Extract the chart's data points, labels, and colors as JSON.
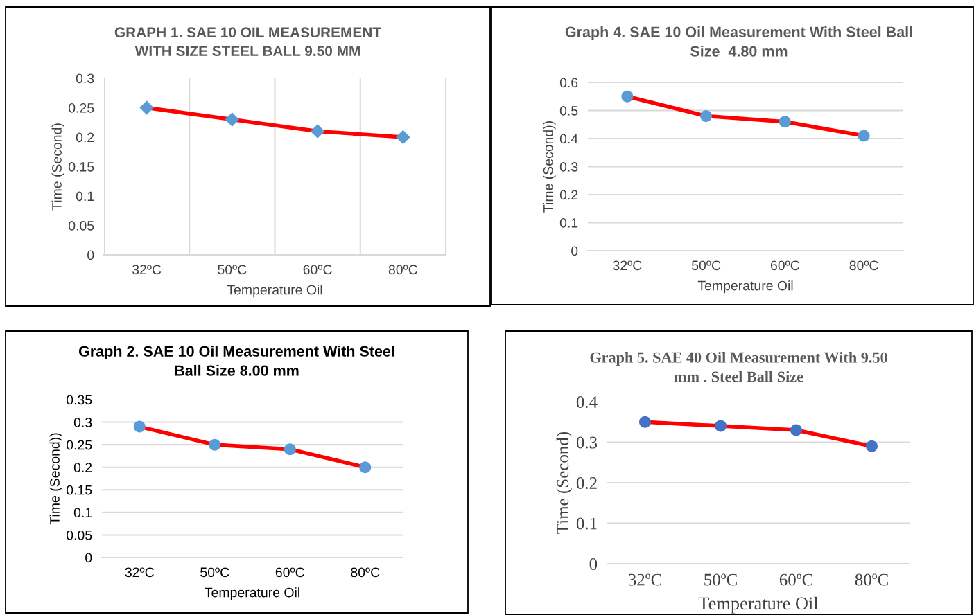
{
  "chart_data": [
    {
      "type": "line",
      "title": "GRAPH 1. SAE 10 OIL MEASUREMENT\nWITH SIZE STEEL BALL 9.50 MM",
      "xlabel": "Temperature Oil",
      "ylabel": "Time (Second)",
      "categories": [
        "32ºC",
        "50ºC",
        "60ºC",
        "80ºC"
      ],
      "series": [
        {
          "color": "#ff0000",
          "colors": [
            "#5b9bd5",
            "#5b9bd5",
            "#5b9bd5",
            "#5b9bd5"
          ],
          "values": [
            0.25,
            0.23,
            0.21,
            0.2
          ]
        }
      ],
      "ylim": [
        0,
        0.3
      ],
      "yticks": [
        0,
        0.05,
        0.1,
        0.15,
        0.2,
        0.25,
        0.3
      ],
      "grid": "x",
      "marker": "diamond",
      "line_style": "solid"
    },
    {
      "type": "line",
      "title": "Graph 4. SAE 10 Oil Measurement With Steel Ball\nSize  4.80 mm",
      "xlabel": "Temperature Oil",
      "ylabel": "Time (Second))",
      "categories": [
        "32ºC",
        "50ºC",
        "60ºC",
        "80ºC"
      ],
      "series": [
        {
          "color": "#ff0000",
          "colors": [
            "#5b9bd5",
            "#5b9bd5",
            "#5b9bd5",
            "#5b9bd5"
          ],
          "values": [
            0.55,
            0.48,
            0.46,
            0.41
          ]
        }
      ],
      "ylim": [
        0,
        0.6
      ],
      "yticks": [
        0,
        0.1,
        0.2,
        0.3,
        0.4,
        0.5,
        0.6
      ],
      "grid": "y",
      "marker": "circle",
      "line_style": "solid"
    },
    {
      "type": "line",
      "title": "Graph 2. SAE 10 Oil Measurement With Steel\nBall Size 8.00 mm",
      "xlabel": "Temperature Oil",
      "ylabel": "Time (Second))",
      "categories": [
        "32ºC",
        "50ºC",
        "60ºC",
        "80ºC"
      ],
      "series": [
        {
          "color": "#ff0000",
          "colors": [
            "#5b9bd5",
            "#5b9bd5",
            "#5b9bd5",
            "#5b9bd5"
          ],
          "values": [
            0.29,
            0.25,
            0.24,
            0.2
          ]
        }
      ],
      "ylim": [
        0,
        0.35
      ],
      "yticks": [
        0,
        0.05,
        0.1,
        0.15,
        0.2,
        0.25,
        0.3,
        0.35
      ],
      "grid": "y",
      "marker": "circle",
      "line_style": "solid"
    },
    {
      "type": "line",
      "title": "Graph 5. SAE 40 Oil Measurement With 9.50\nmm . Steel Ball Size",
      "xlabel": "Temperature Oil",
      "ylabel": "Time (Second)",
      "categories": [
        "32ºC",
        "50ºC",
        "60ºC",
        "80ºC"
      ],
      "series": [
        {
          "color": "#ff0000",
          "colors": [
            "#4472c4",
            "#4472c4",
            "#4472c4",
            "#4472c4"
          ],
          "values": [
            0.35,
            0.34,
            0.33,
            0.29
          ]
        }
      ],
      "ylim": [
        0,
        0.4
      ],
      "yticks": [
        0,
        0.1,
        0.2,
        0.3,
        0.4
      ],
      "grid": "y",
      "marker": "circle",
      "line_style": "solid"
    }
  ]
}
